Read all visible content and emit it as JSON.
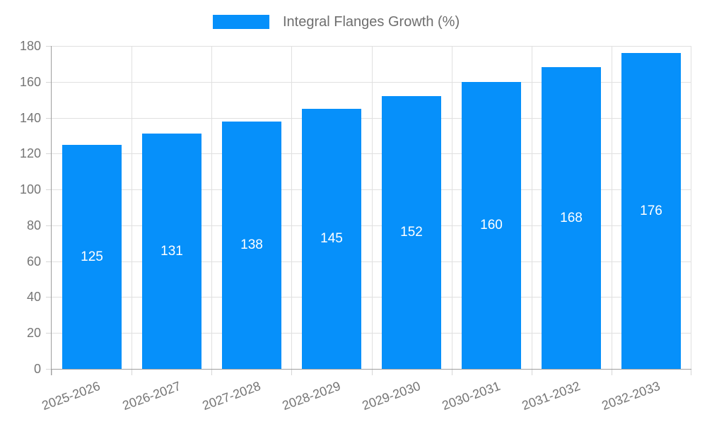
{
  "chart_data": {
    "type": "bar",
    "title": "",
    "legend": {
      "label": "Integral Flanges Growth (%)",
      "position": "top"
    },
    "categories": [
      "2025-2026",
      "2026-2027",
      "2027-2028",
      "2028-2029",
      "2029-2030",
      "2030-2031",
      "2031-2032",
      "2032-2033"
    ],
    "series": [
      {
        "name": "Integral Flanges Growth (%)",
        "values": [
          125,
          131,
          138,
          145,
          152,
          160,
          168,
          176
        ]
      }
    ],
    "xlabel": "",
    "ylabel": "",
    "ylim": [
      0,
      180
    ],
    "ytick_step": 20,
    "y_tick_labels": [
      "0",
      "20",
      "40",
      "60",
      "80",
      "100",
      "120",
      "140",
      "160",
      "180"
    ],
    "grid": true,
    "legend_position": "top",
    "value_labels_inside_bars": true,
    "colors": {
      "bar": "#0690fa",
      "value_label": "#ffffff",
      "axis_label": "#757575",
      "legend_text": "#6e6e6e",
      "gridline": "#e0e0e0",
      "tick": "#d6d6d6",
      "axis_line": "#9e9e9e",
      "background": "#ffffff"
    }
  }
}
